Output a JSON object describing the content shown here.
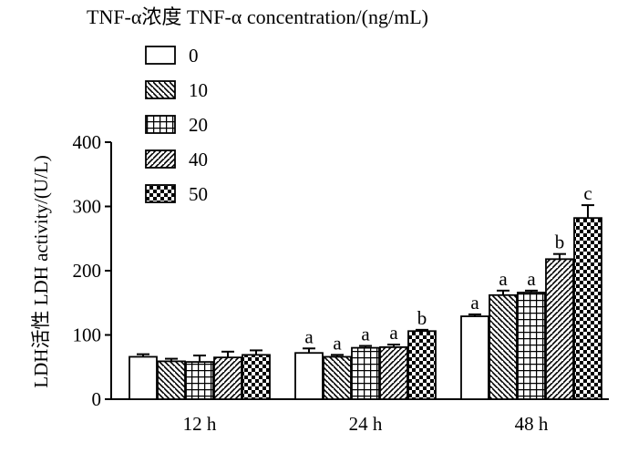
{
  "chart_data": {
    "type": "bar",
    "legend_title": "TNF-α浓度 TNF-α concentration/(ng/mL)",
    "ylabel": "LDH活性  LDH activity/(U/L)",
    "xlabel": "",
    "ylim": [
      0,
      400
    ],
    "yticks": [
      0,
      100,
      200,
      300,
      400
    ],
    "categories": [
      "12 h",
      "24 h",
      "48 h"
    ],
    "legend_position": "top-left",
    "series": [
      {
        "name": "0",
        "pattern": "white",
        "values": [
          66,
          72,
          129
        ],
        "errors": [
          4,
          7,
          3
        ],
        "labels": [
          "",
          "a",
          "a"
        ]
      },
      {
        "name": "10",
        "pattern": "back-diagonal",
        "values": [
          59,
          66,
          162
        ],
        "errors": [
          4,
          3,
          7
        ],
        "labels": [
          "",
          "a",
          "a"
        ]
      },
      {
        "name": "20",
        "pattern": "grid",
        "values": [
          58,
          80,
          166
        ],
        "errors": [
          10,
          3,
          3
        ],
        "labels": [
          "",
          "a",
          "a"
        ]
      },
      {
        "name": "40",
        "pattern": "forward-diagonal",
        "values": [
          65,
          81,
          218
        ],
        "errors": [
          9,
          4,
          8
        ],
        "labels": [
          "",
          "a",
          "b"
        ]
      },
      {
        "name": "50",
        "pattern": "checker",
        "values": [
          69,
          106,
          282
        ],
        "errors": [
          7,
          2,
          20
        ],
        "labels": [
          "",
          "b",
          "c"
        ]
      }
    ]
  }
}
